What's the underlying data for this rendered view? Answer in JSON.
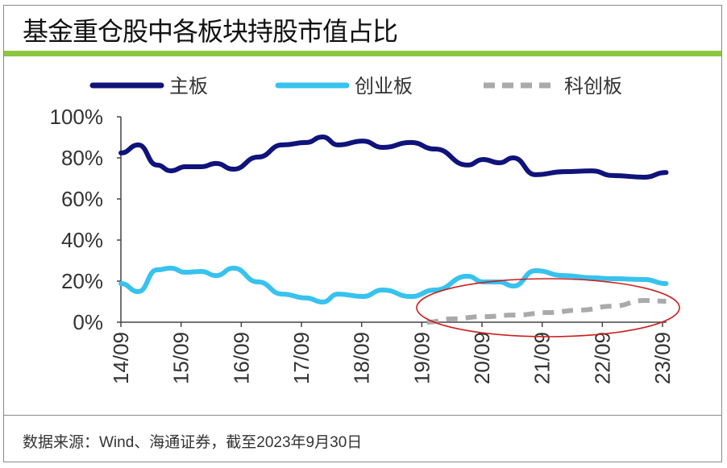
{
  "title": "基金重仓股中各板块持股市值占比",
  "footer": "数据来源：Wind、海通证券，截至2023年9月30日",
  "colors": {
    "main": "#10137a",
    "chinext": "#38c2ee",
    "star": "#aaaaaa",
    "accent": "#8dc63f",
    "annotation": "#cc1f1f"
  },
  "chart_data": {
    "type": "line",
    "title": "基金重仓股中各板块持股市值占比",
    "xlabel": "",
    "ylabel": "",
    "ylim": [
      0,
      100
    ],
    "xlim": [
      2014.75,
      2023.75
    ],
    "y_ticks": [
      "0%",
      "20%",
      "40%",
      "60%",
      "80%",
      "100%"
    ],
    "x_ticks": [
      "14/09",
      "15/09",
      "16/09",
      "17/09",
      "18/09",
      "19/09",
      "20/09",
      "21/09",
      "22/09",
      "23/09"
    ],
    "legend": {
      "placement": "top",
      "entries": [
        "主板",
        "创业板",
        "科创板"
      ]
    },
    "series": [
      {
        "name": "主板",
        "style": "solid",
        "x": [
          14.75,
          15.04,
          15.35,
          15.58,
          15.82,
          16.09,
          16.33,
          16.62,
          17.03,
          17.43,
          17.83,
          18.1,
          18.36,
          18.77,
          19.1,
          19.57,
          19.97,
          20.51,
          20.77,
          21.04,
          21.27,
          21.64,
          22.11,
          22.58,
          22.92,
          23.45,
          23.81
        ],
        "values": [
          82.4,
          86.3,
          76.5,
          73.7,
          75.7,
          75.7,
          77.3,
          74.5,
          80.4,
          86.3,
          87.5,
          90.2,
          86.3,
          88.2,
          85.1,
          87.5,
          84.3,
          76.5,
          79.2,
          77.6,
          80.0,
          71.8,
          73.3,
          73.7,
          71.4,
          70.6,
          72.9
        ]
      },
      {
        "name": "创业板",
        "style": "solid",
        "x": [
          14.75,
          15.04,
          15.35,
          15.58,
          15.82,
          16.09,
          16.33,
          16.62,
          17.03,
          17.43,
          17.83,
          18.1,
          18.36,
          18.77,
          19.1,
          19.57,
          19.97,
          20.51,
          20.77,
          21.04,
          21.27,
          21.64,
          22.11,
          22.58,
          22.92,
          23.45,
          23.81
        ],
        "values": [
          18.8,
          14.9,
          25.5,
          26.3,
          24.3,
          24.7,
          22.7,
          26.3,
          19.6,
          13.7,
          11.8,
          9.8,
          13.7,
          12.5,
          15.7,
          12.5,
          15.7,
          22.4,
          19.6,
          19.6,
          17.6,
          25.1,
          22.7,
          21.6,
          21.2,
          20.8,
          18.8
        ]
      },
      {
        "name": "科创板",
        "style": "dashed",
        "x": [
          19.84,
          20.24,
          20.77,
          21.31,
          21.85,
          22.38,
          22.92,
          23.45,
          23.81
        ],
        "values": [
          0,
          1.6,
          2.7,
          3.5,
          4.7,
          5.9,
          7.8,
          10.6,
          10.2
        ]
      }
    ],
    "annotations": [
      {
        "type": "ellipse",
        "note": "highlights 科创板 rise since 19/09"
      }
    ],
    "grid": false
  }
}
